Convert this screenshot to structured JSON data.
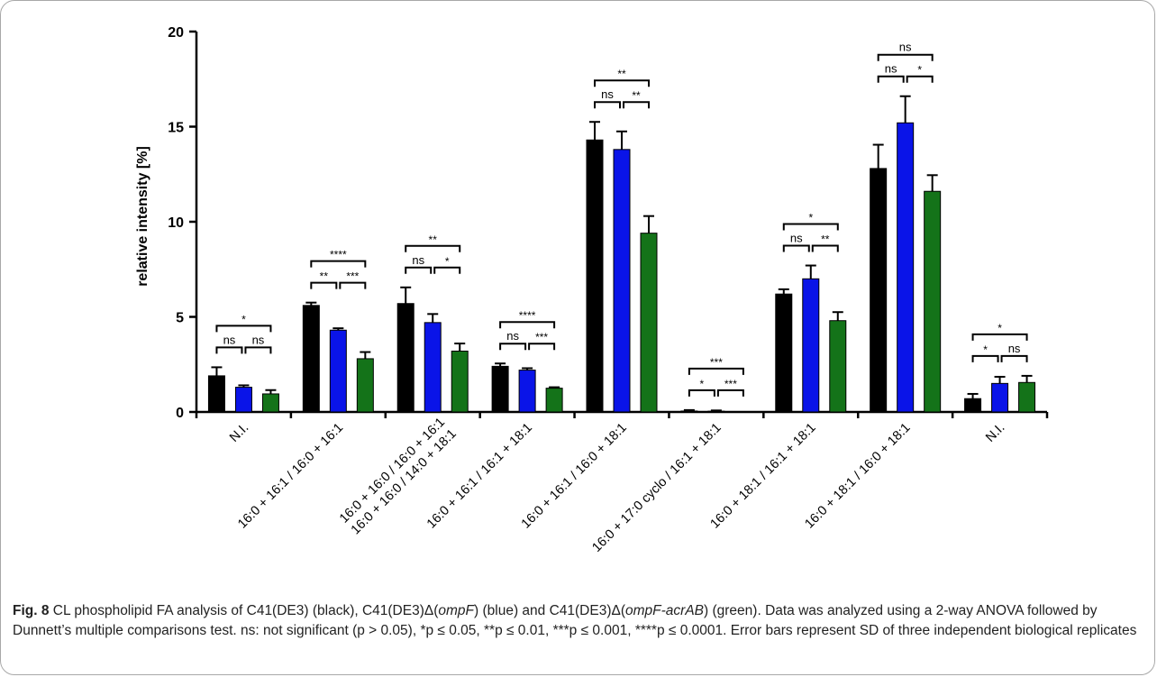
{
  "chart_data": {
    "type": "bar",
    "ylabel": "relative intensity [%]",
    "xlabel": "",
    "ylim": [
      0,
      20
    ],
    "yticks": [
      0,
      5,
      10,
      15,
      20
    ],
    "grid": false,
    "series_colors": [
      "#000000",
      "#0a14e8",
      "#147319"
    ],
    "categories": [
      "N.I.",
      "16:0 + 16:1 / 16:0 + 16:1",
      "16:0 + 16:0 / 16:0 + 16:1\n16:0 + 16:0 / 14:0 + 18:1",
      "16:0 + 16:1 / 16:1 + 18:1",
      "16:0 + 16:1 / 16:0 + 18:1",
      "16:0 + 17:0 cyclo / 16:1 + 18:1",
      "16:0 + 18:1 / 16:1 + 18:1",
      "16:0 + 18:1 / 16:0 + 18:1",
      "N.I."
    ],
    "series": [
      {
        "values": [
          1.9,
          5.6,
          5.7,
          2.4,
          14.3,
          0.05,
          6.2,
          12.8,
          0.7
        ],
        "sd": [
          0.45,
          0.15,
          0.85,
          0.15,
          0.95,
          0.05,
          0.25,
          1.25,
          0.25
        ]
      },
      {
        "values": [
          1.3,
          4.3,
          4.7,
          2.2,
          13.8,
          0.04,
          7.0,
          15.2,
          1.5
        ],
        "sd": [
          0.1,
          0.1,
          0.45,
          0.1,
          0.95,
          0.04,
          0.7,
          1.4,
          0.35
        ]
      },
      {
        "values": [
          0.95,
          2.8,
          3.2,
          1.25,
          9.4,
          0.0,
          4.8,
          11.6,
          1.55
        ],
        "sd": [
          0.2,
          0.35,
          0.4,
          0.05,
          0.9,
          0.0,
          0.45,
          0.85,
          0.35
        ]
      }
    ],
    "significance": [
      {
        "category": 0,
        "pairs": [
          {
            "a": 0,
            "b": 1,
            "label": "ns",
            "level": 1
          },
          {
            "a": 1,
            "b": 2,
            "label": "ns",
            "level": 1
          },
          {
            "a": 0,
            "b": 2,
            "label": "*",
            "level": 2
          }
        ]
      },
      {
        "category": 1,
        "pairs": [
          {
            "a": 0,
            "b": 1,
            "label": "**",
            "level": 1
          },
          {
            "a": 1,
            "b": 2,
            "label": "***",
            "level": 1
          },
          {
            "a": 0,
            "b": 2,
            "label": "****",
            "level": 2
          }
        ]
      },
      {
        "category": 2,
        "pairs": [
          {
            "a": 0,
            "b": 1,
            "label": "ns",
            "level": 1
          },
          {
            "a": 1,
            "b": 2,
            "label": "*",
            "level": 1
          },
          {
            "a": 0,
            "b": 2,
            "label": "**",
            "level": 2
          }
        ]
      },
      {
        "category": 3,
        "pairs": [
          {
            "a": 0,
            "b": 1,
            "label": "ns",
            "level": 1
          },
          {
            "a": 1,
            "b": 2,
            "label": "***",
            "level": 1
          },
          {
            "a": 0,
            "b": 2,
            "label": "****",
            "level": 2
          }
        ]
      },
      {
        "category": 4,
        "pairs": [
          {
            "a": 0,
            "b": 1,
            "label": "ns",
            "level": 1
          },
          {
            "a": 1,
            "b": 2,
            "label": "**",
            "level": 1
          },
          {
            "a": 0,
            "b": 2,
            "label": "**",
            "level": 2
          }
        ]
      },
      {
        "category": 5,
        "pairs": [
          {
            "a": 0,
            "b": 1,
            "label": "*",
            "level": 1
          },
          {
            "a": 1,
            "b": 2,
            "label": "***",
            "level": 1
          },
          {
            "a": 0,
            "b": 2,
            "label": "***",
            "level": 2
          }
        ]
      },
      {
        "category": 6,
        "pairs": [
          {
            "a": 0,
            "b": 1,
            "label": "ns",
            "level": 1
          },
          {
            "a": 1,
            "b": 2,
            "label": "**",
            "level": 1
          },
          {
            "a": 0,
            "b": 2,
            "label": "*",
            "level": 2
          }
        ]
      },
      {
        "category": 7,
        "pairs": [
          {
            "a": 0,
            "b": 1,
            "label": "ns",
            "level": 1
          },
          {
            "a": 1,
            "b": 2,
            "label": "*",
            "level": 1
          },
          {
            "a": 0,
            "b": 2,
            "label": "ns",
            "level": 2
          }
        ]
      },
      {
        "category": 8,
        "pairs": [
          {
            "a": 0,
            "b": 1,
            "label": "*",
            "level": 1
          },
          {
            "a": 1,
            "b": 2,
            "label": "ns",
            "level": 1
          },
          {
            "a": 0,
            "b": 2,
            "label": "*",
            "level": 2
          }
        ]
      }
    ]
  },
  "caption": {
    "figure_label": "Fig. 8",
    "segments": [
      {
        "text": "  CL phospholipid FA analysis of C41(DE3) (black), C41(DE3)Δ(",
        "italic": false
      },
      {
        "text": "ompF",
        "italic": true
      },
      {
        "text": ") (blue) and C41(DE3)Δ(",
        "italic": false
      },
      {
        "text": "ompF-acrAB",
        "italic": true
      },
      {
        "text": ") (green). Data was analyzed using a 2-way ANOVA followed by Dunnett’s multiple comparisons test. ns: not significant (p > 0.05), *p ≤ 0.05, **p ≤ 0.01, ***p ≤ 0.001, ****p ≤ 0.0001. Error bars represent SD of three independent biological replicates",
        "italic": false
      }
    ]
  }
}
